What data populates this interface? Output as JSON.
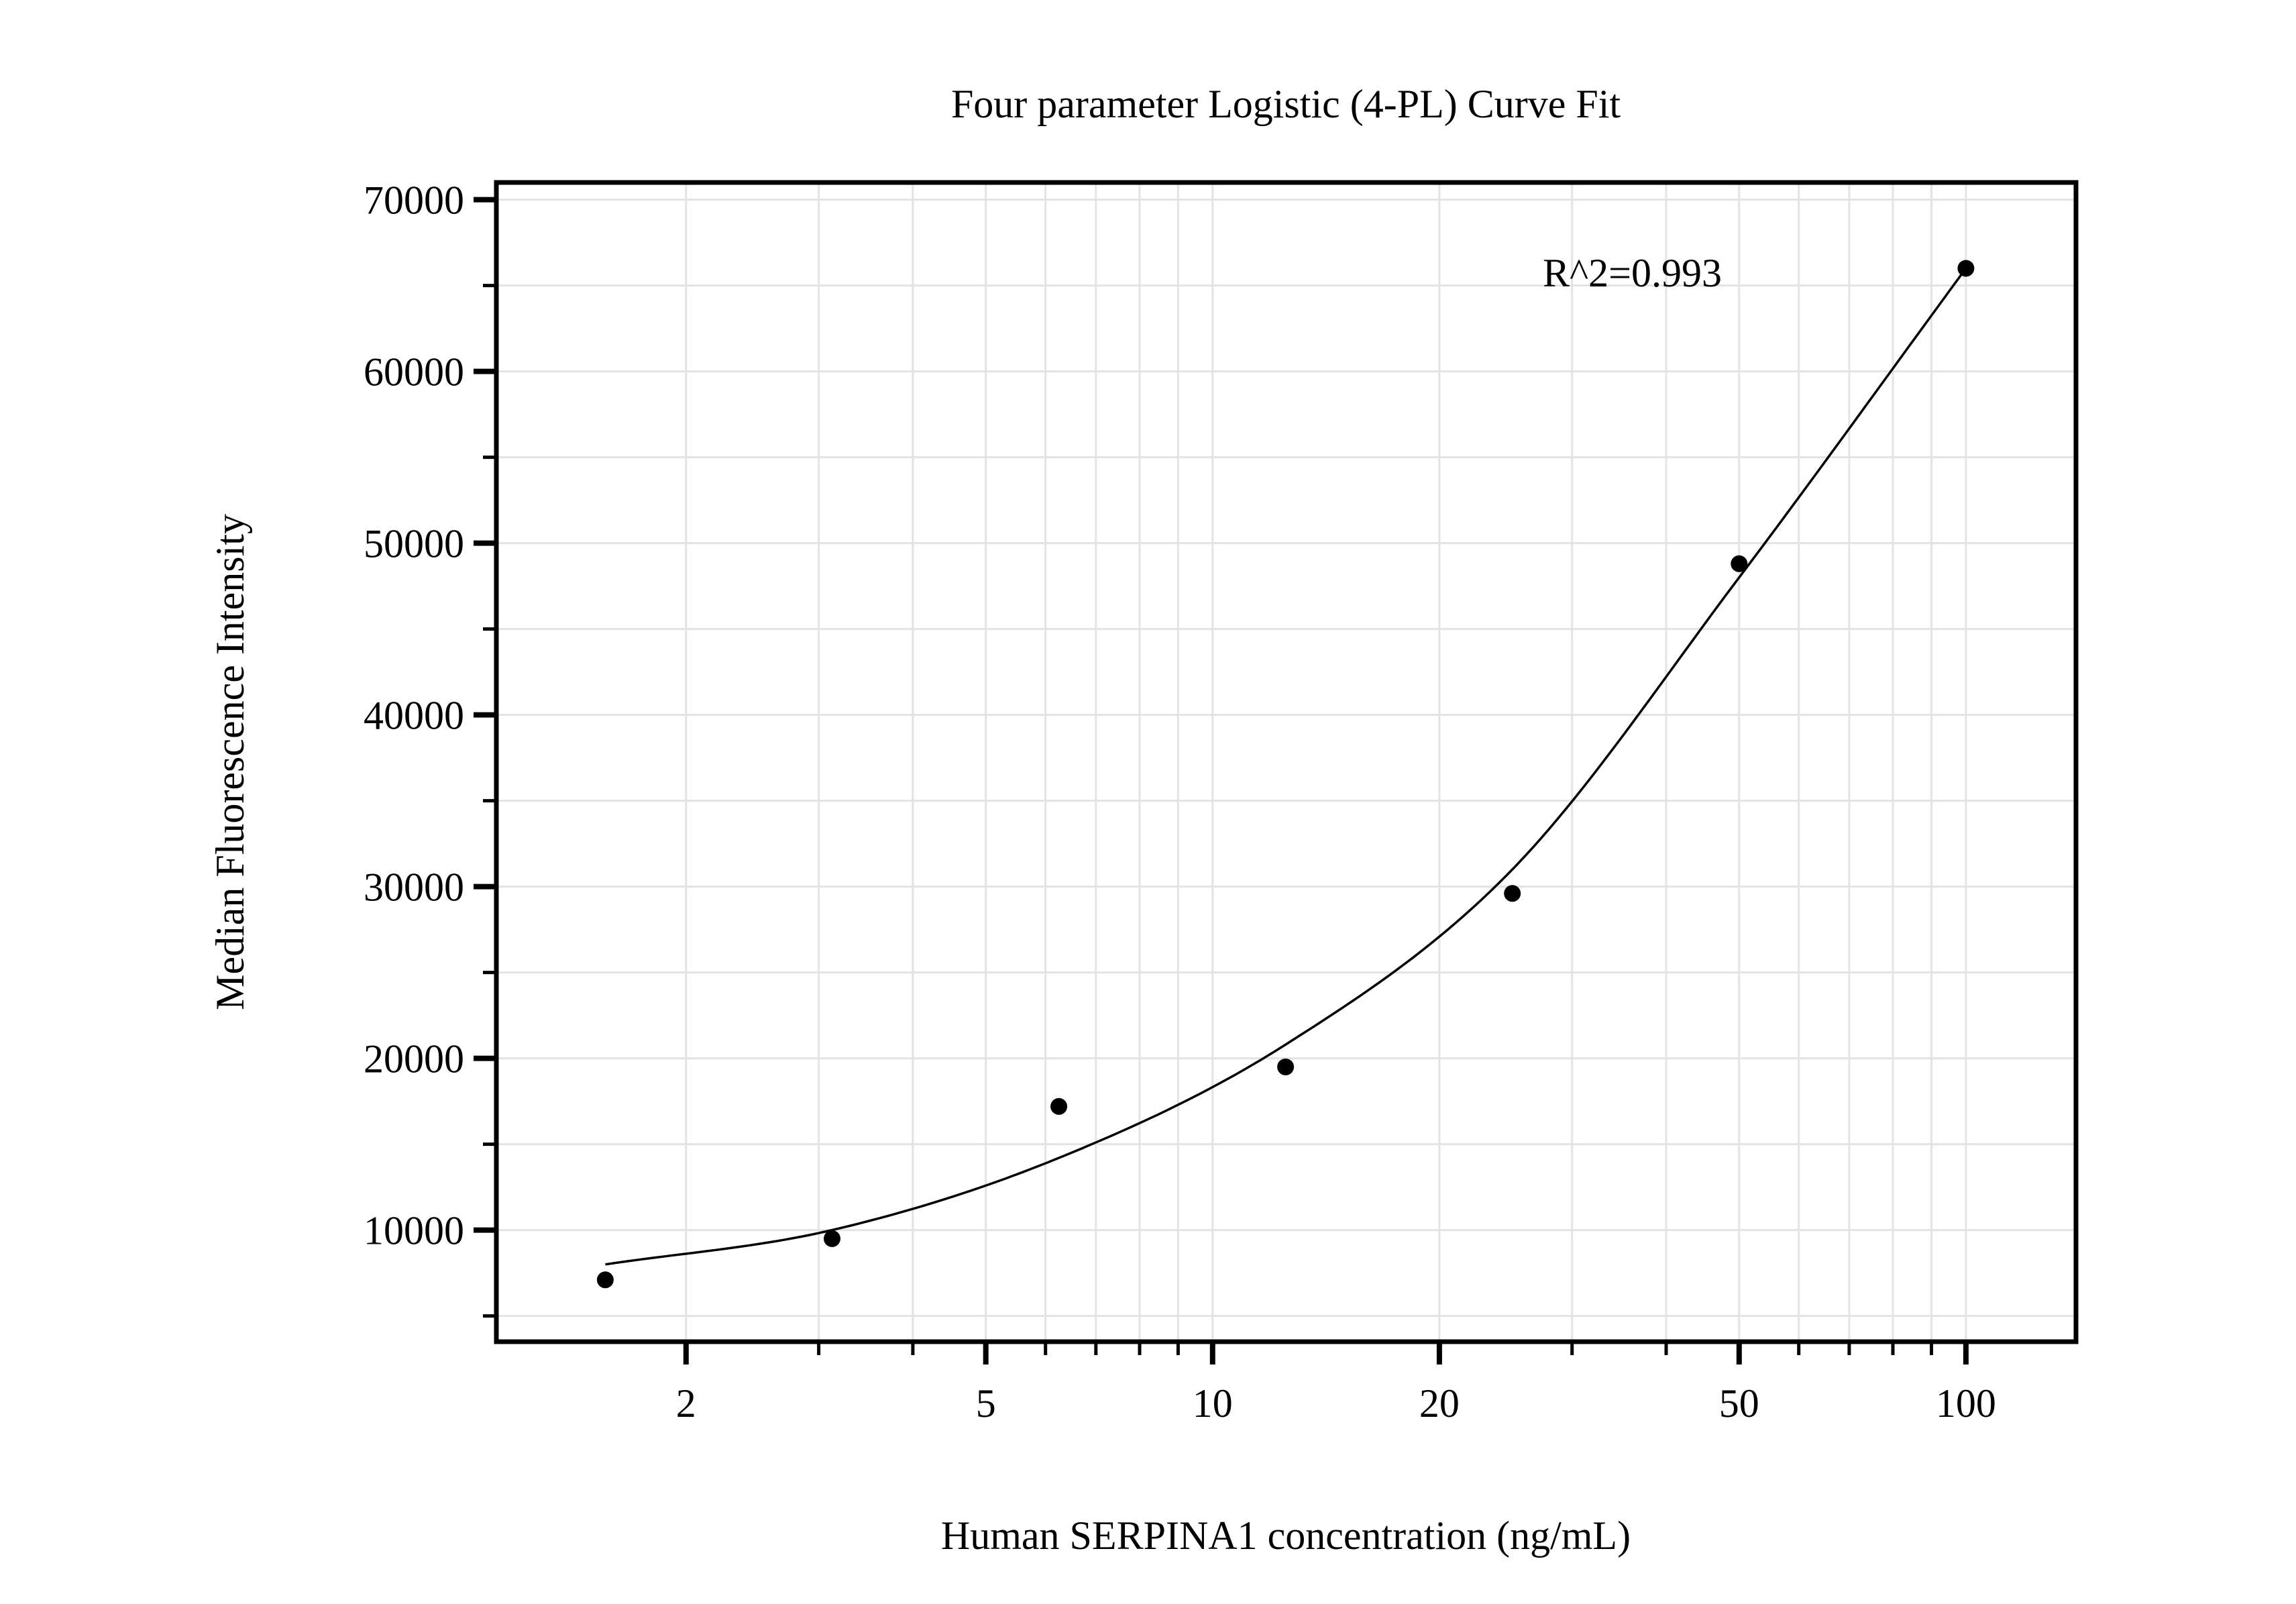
{
  "style": {
    "background": "#ffffff",
    "text_color": "#000000",
    "frame_color": "#000000",
    "grid_color": "#e3e3e3",
    "marker_color": "#000000",
    "line_color": "#000000"
  },
  "chart_data": {
    "type": "scatter",
    "title": "Four parameter Logistic (4-PL) Curve Fit",
    "xlabel": "Human SERPINA1 concentration (ng/mL)",
    "ylabel": "Median Fluorescence Intensity",
    "annotation": "R^2=0.993",
    "x_scale": "log",
    "x_range": [
      1.12,
      140
    ],
    "y_range": [
      3500,
      71000
    ],
    "x_major_ticks": [
      2,
      5,
      10,
      20,
      50,
      100
    ],
    "x_minor_ticks": [
      3,
      4,
      6,
      7,
      8,
      9,
      30,
      40,
      60,
      70,
      80,
      90
    ],
    "y_major_ticks": [
      10000,
      20000,
      30000,
      40000,
      50000,
      60000,
      70000
    ],
    "y_minor_ticks": [
      5000,
      15000,
      25000,
      35000,
      45000,
      55000,
      65000
    ],
    "grid": true,
    "legend": false,
    "series": [
      {
        "name": "standard-data-points",
        "type": "scatter",
        "x": [
          1.5625,
          3.125,
          6.25,
          12.5,
          25,
          50,
          100
        ],
        "y": [
          7100,
          9500,
          17200,
          19500,
          29600,
          48800,
          66000
        ]
      },
      {
        "name": "4pl-fitted-curve",
        "type": "line",
        "x": [
          1.5625,
          3.125,
          6.25,
          12.5,
          25,
          50,
          100
        ],
        "y": [
          8000,
          10000,
          14200,
          20800,
          31000,
          48000,
          66000
        ]
      }
    ]
  }
}
